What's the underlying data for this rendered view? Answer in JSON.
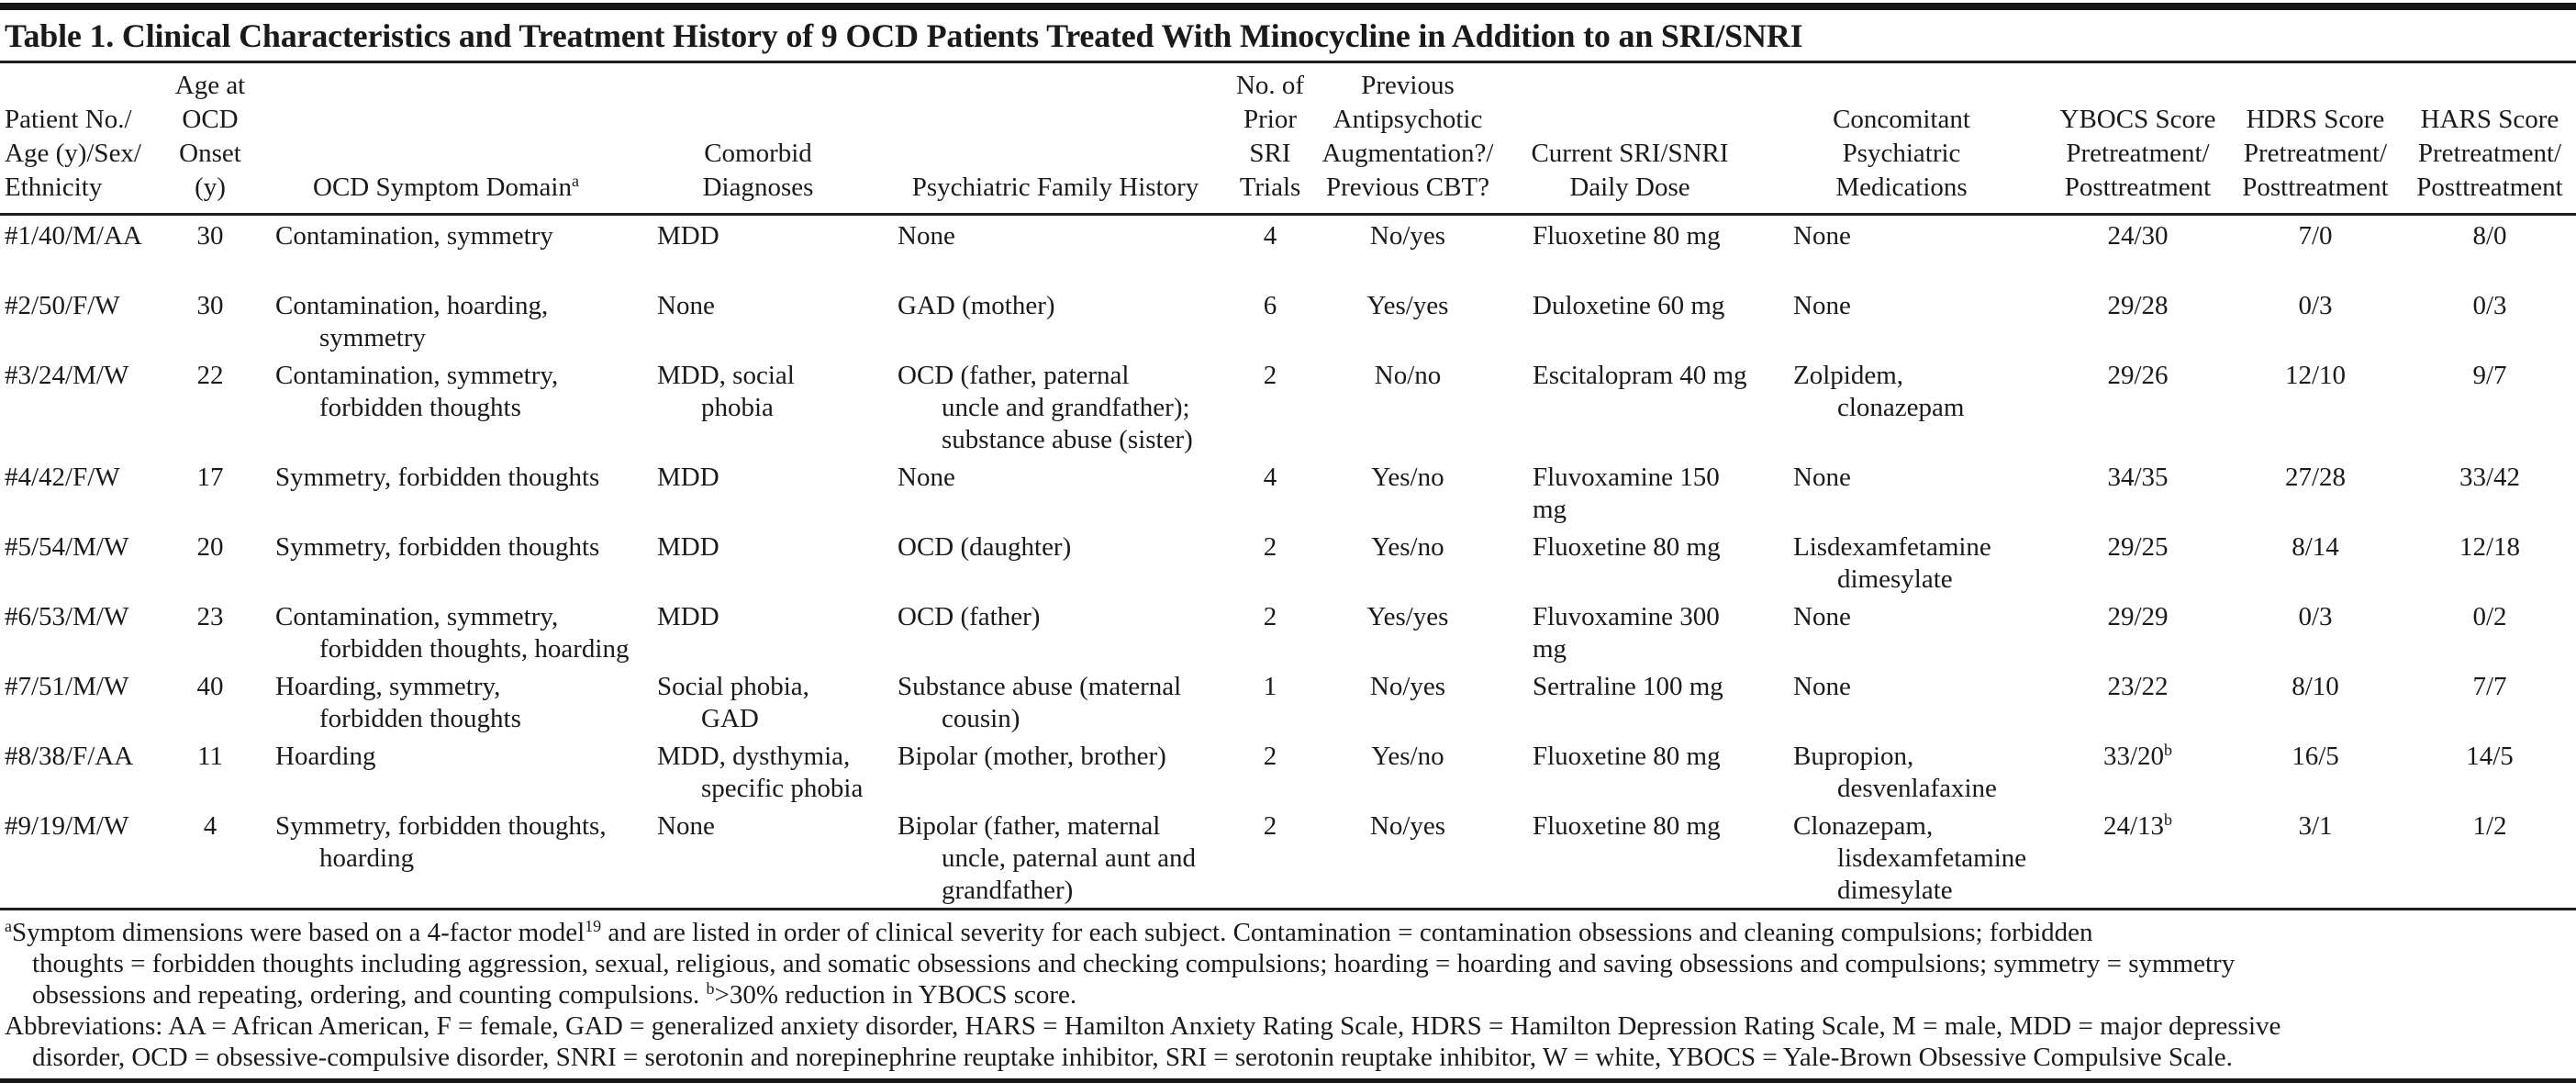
{
  "table": {
    "title": "Table 1. Clinical Characteristics and Treatment History of 9 OCD Patients Treated With Minocycline in Addition to an SRI/SNRI",
    "columns": [
      {
        "id": "patient",
        "label": "Patient No./\nAge (y)/Sex/\nEthnicity"
      },
      {
        "id": "age-at-onset",
        "label": "Age at\nOCD\nOnset\n(y)"
      },
      {
        "id": "symptom-domain",
        "label": "OCD Symptom Domain^{a}"
      },
      {
        "id": "comorbid-diagnoses",
        "label": "Comorbid\nDiagnoses"
      },
      {
        "id": "family-history",
        "label": "Psychiatric Family History"
      },
      {
        "id": "prior-sri-trials",
        "label": "No. of\nPrior\nSRI\nTrials"
      },
      {
        "id": "previous-augmentation",
        "label": "Previous\nAntipsychotic\nAugmentation?/\nPrevious CBT?"
      },
      {
        "id": "current-dose",
        "label": "Current SRI/SNRI\nDaily Dose"
      },
      {
        "id": "concomitant-medications",
        "label": "Concomitant\nPsychiatric\nMedications"
      },
      {
        "id": "ybocs",
        "label": "YBOCS Score\nPretreatment/\nPosttreatment"
      },
      {
        "id": "hdrs",
        "label": "HDRS Score\nPretreatment/\nPosttreatment"
      },
      {
        "id": "hars",
        "label": "HARS Score\nPretreatment/\nPosttreatment"
      }
    ],
    "rows": [
      {
        "cells": [
          "#1/40/M/AA",
          "30",
          "Contamination, symmetry",
          "MDD",
          "None",
          "4",
          "No/yes",
          "Fluoxetine 80 mg",
          "None",
          "24/30",
          "7/0",
          "8/0"
        ]
      },
      {
        "cells": [
          "#2/50/F/W",
          "30",
          "Contamination, hoarding,\nsymmetry",
          "None",
          "GAD (mother)",
          "6",
          "Yes/yes",
          "Duloxetine 60 mg",
          "None",
          "29/28",
          "0/3",
          "0/3"
        ]
      },
      {
        "cells": [
          "#3/24/M/W",
          "22",
          "Contamination, symmetry,\nforbidden thoughts",
          "MDD, social\nphobia",
          "OCD (father, paternal\nuncle and grandfather);\nsubstance abuse (sister)",
          "2",
          "No/no",
          "Escitalopram 40 mg",
          "Zolpidem,\nclonazepam",
          "29/26",
          "12/10",
          "9/7"
        ]
      },
      {
        "cells": [
          "#4/42/F/W",
          "17",
          "Symmetry, forbidden thoughts",
          "MDD",
          "None",
          "4",
          "Yes/no",
          "Fluvoxamine 150 mg",
          "None",
          "34/35",
          "27/28",
          "33/42"
        ]
      },
      {
        "cells": [
          "#5/54/M/W",
          "20",
          "Symmetry, forbidden thoughts",
          "MDD",
          "OCD (daughter)",
          "2",
          "Yes/no",
          "Fluoxetine 80 mg",
          "Lisdexamfetamine\ndimesylate",
          "29/25",
          "8/14",
          "12/18"
        ]
      },
      {
        "cells": [
          "#6/53/M/W",
          "23",
          "Contamination, symmetry,\nforbidden thoughts, hoarding",
          "MDD",
          "OCD (father)",
          "2",
          "Yes/yes",
          "Fluvoxamine 300 mg",
          "None",
          "29/29",
          "0/3",
          "0/2"
        ]
      },
      {
        "cells": [
          "#7/51/M/W",
          "40",
          "Hoarding, symmetry,\nforbidden thoughts",
          "Social phobia,\nGAD",
          "Substance abuse (maternal\ncousin)",
          "1",
          "No/yes",
          "Sertraline 100 mg",
          "None",
          "23/22",
          "8/10",
          "7/7"
        ]
      },
      {
        "cells": [
          "#8/38/F/AA",
          "11",
          "Hoarding",
          "MDD, dysthymia,\nspecific phobia",
          "Bipolar (mother, brother)",
          "2",
          "Yes/no",
          "Fluoxetine 80 mg",
          "Bupropion,\ndesvenlafaxine",
          "33/20^{b}",
          "16/5",
          "14/5"
        ]
      },
      {
        "cells": [
          "#9/19/M/W",
          "4",
          "Symmetry, forbidden thoughts,\nhoarding",
          "None",
          "Bipolar (father, maternal\nuncle, paternal aunt and\ngrandfather)",
          "2",
          "No/yes",
          "Fluoxetine 80 mg",
          "Clonazepam,\nlisdexamfetamine\ndimesylate",
          "24/13^{b}",
          "3/1",
          "1/2"
        ]
      }
    ],
    "footnotes": [
      "^{a}Symptom dimensions were based on a 4-factor model^{19} and are listed in order of clinical severity for each subject. Contamination = contamination obsessions and cleaning compulsions; forbidden\nthoughts = forbidden thoughts including aggression, sexual, religious, and somatic obsessions and checking compulsions; hoarding = hoarding and saving obsessions and compulsions; symmetry = symmetry\nobsessions and repeating, ordering, and counting compulsions.  ^{b}>30% reduction in YBOCS score.",
      "Abbreviations: AA = African American, F = female, GAD = generalized anxiety disorder, HARS = Hamilton Anxiety Rating Scale, HDRS = Hamilton Depression Rating Scale, M = male, MDD = major depressive\ndisorder, OCD = obsessive-compulsive disorder, SNRI = serotonin and norepinephrine reuptake inhibitor, SRI = serotonin reuptake inhibitor, W = white, YBOCS = Yale-Brown Obsessive Compulsive Scale."
    ],
    "colors": {
      "text": "#1a1a1a",
      "rule": "#1f1f1f",
      "background": "#ffffff"
    }
  }
}
